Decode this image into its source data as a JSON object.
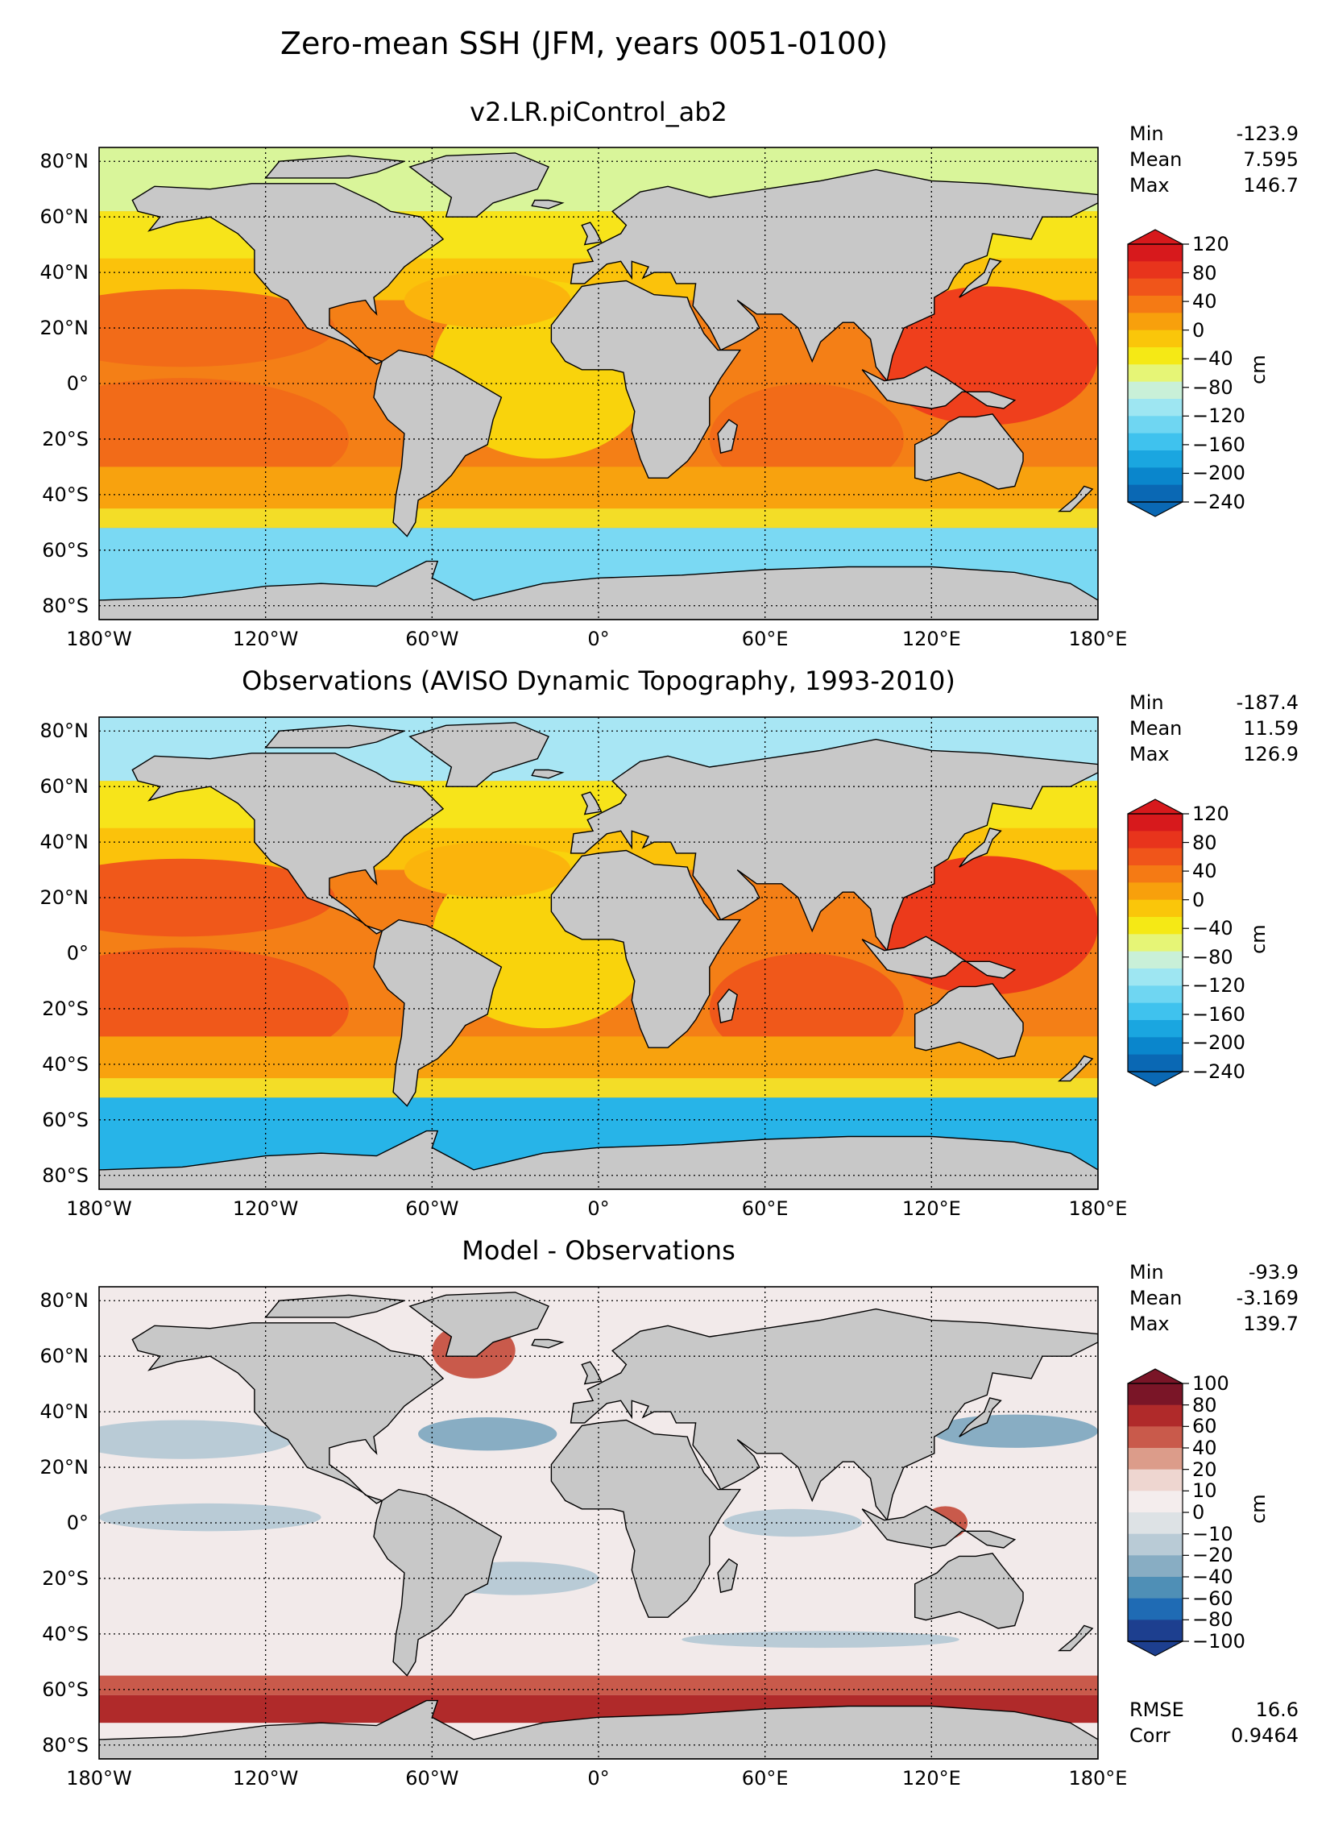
{
  "figure_title": "Zero-mean SSH (JFM, years 0051-0100)",
  "x_ticks": [
    "180°W",
    "120°W",
    "60°W",
    "0°",
    "60°E",
    "120°E",
    "180°E"
  ],
  "y_ticks": [
    "80°N",
    "60°N",
    "40°N",
    "20°N",
    "0°",
    "20°S",
    "40°S",
    "60°S",
    "80°S"
  ],
  "panels": [
    {
      "title": "v2.LR.piControl_ab2",
      "stats": [
        {
          "label": "Min",
          "value": "-123.9"
        },
        {
          "label": "Mean",
          "value": "7.595"
        },
        {
          "label": "Max",
          "value": "146.7"
        }
      ],
      "colorbar": {
        "label": "cm",
        "ticks": [
          "120",
          "80",
          "40",
          "0",
          "−40",
          "−80",
          "−120",
          "−160",
          "−200",
          "−240"
        ],
        "colors": [
          "#d7191c",
          "#e8341c",
          "#f0551a",
          "#f57a14",
          "#f8a00c",
          "#fac60a",
          "#f5e915",
          "#e6f576",
          "#c9f0d8",
          "#9ee6f2",
          "#6fd6f2",
          "#3fc2ee",
          "#1aa6e0",
          "#0a86cc",
          "#0a68b4"
        ]
      },
      "map_palette": {
        "north_pacific": "#f9a60e",
        "tropics": "#f47f16",
        "subtropical_gyre": "#f26b18",
        "equatorial_atlantic": "#f9d30c",
        "west_pacific": "#ef3f1c",
        "southern_ocean": "#7ad9f3",
        "arctic": "#d9f59a"
      }
    },
    {
      "title": "Observations (AVISO Dynamic Topography, 1993-2010)",
      "stats": [
        {
          "label": "Min",
          "value": "-187.4"
        },
        {
          "label": "Mean",
          "value": "11.59"
        },
        {
          "label": "Max",
          "value": "126.9"
        }
      ],
      "colorbar": {
        "label": "cm",
        "ticks": [
          "120",
          "80",
          "40",
          "0",
          "−40",
          "−80",
          "−120",
          "−160",
          "−200",
          "−240"
        ],
        "colors": [
          "#d7191c",
          "#e8341c",
          "#f0551a",
          "#f57a14",
          "#f8a00c",
          "#fac60a",
          "#f5e915",
          "#e6f576",
          "#c9f0d8",
          "#9ee6f2",
          "#6fd6f2",
          "#3fc2ee",
          "#1aa6e0",
          "#0a86cc",
          "#0a68b4"
        ]
      },
      "map_palette": {
        "north_pacific": "#f9a60e",
        "tropics": "#f47f16",
        "subtropical_gyre": "#f0581a",
        "equatorial_atlantic": "#f9d30c",
        "west_pacific": "#ec3a1b",
        "southern_ocean": "#27b4e8",
        "arctic": "#a8e6f4"
      }
    },
    {
      "title": "Model - Observations",
      "stats": [
        {
          "label": "Min",
          "value": "-93.9"
        },
        {
          "label": "Mean",
          "value": "-3.169"
        },
        {
          "label": "Max",
          "value": "139.7"
        }
      ],
      "extra_stats": [
        {
          "label": "RMSE",
          "value": "16.6"
        },
        {
          "label": "Corr",
          "value": "0.9464"
        }
      ],
      "colorbar": {
        "label": "cm",
        "ticks": [
          "100",
          "80",
          "60",
          "40",
          "20",
          "10",
          "0",
          "−10",
          "−20",
          "−40",
          "−60",
          "−80",
          "−100"
        ],
        "colors": [
          "#7a1527",
          "#b02a2a",
          "#c95a4b",
          "#dc9c8a",
          "#eed6d0",
          "#f4eded",
          "#dde2e5",
          "#b9cbd6",
          "#88adc3",
          "#4f8fb6",
          "#1f6bb4",
          "#1d3f8f"
        ]
      },
      "map_palette": {
        "background": "#f2eaea",
        "negative_band": "#b9cbd6",
        "strong_negative": "#88adc3",
        "southern_positive": "#c95a4b",
        "southern_strong": "#b02a2a"
      }
    }
  ],
  "map_colors": {
    "land": "#c8c8c8",
    "coast": "#000000",
    "grid": "#000000"
  }
}
